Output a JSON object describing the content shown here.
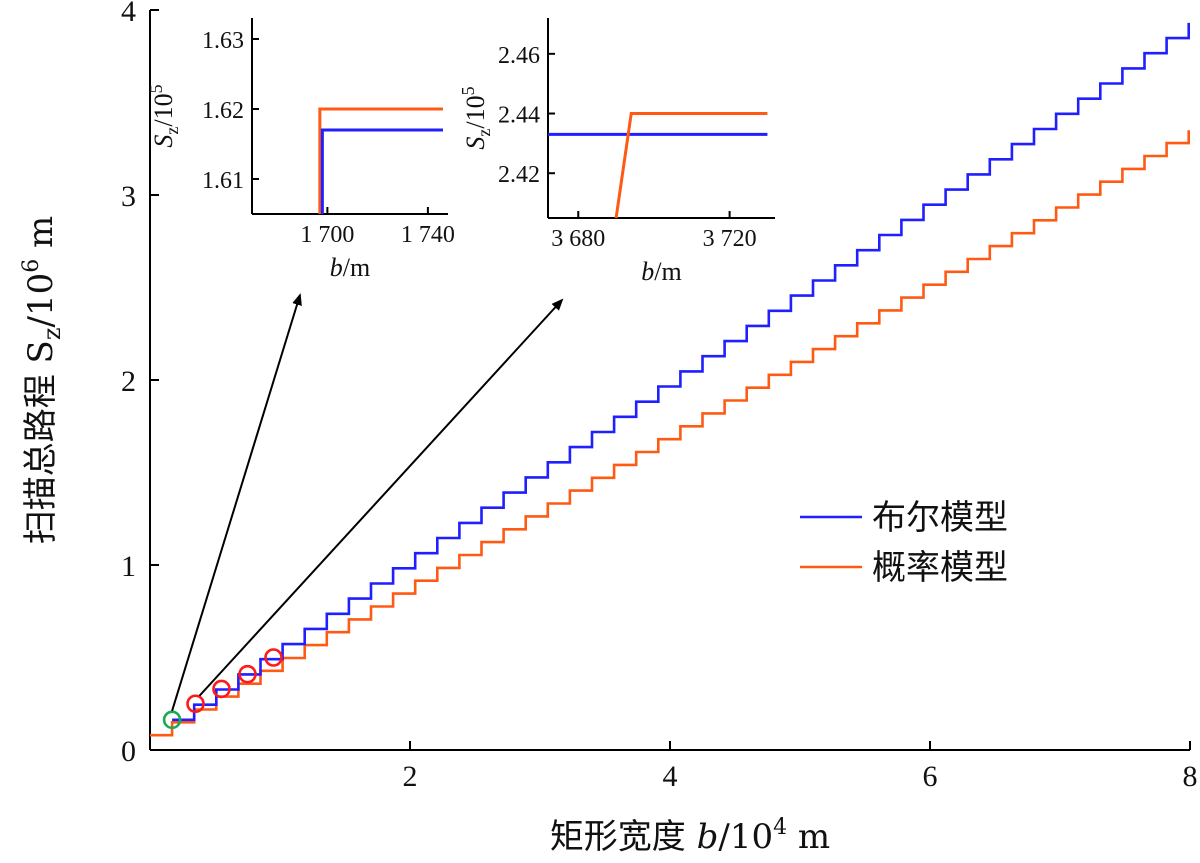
{
  "colors": {
    "blue": "#1f1fff",
    "orange": "#ff5a14",
    "red_marker": "#ff1a1a",
    "green_marker": "#1aaa55"
  },
  "chart_data": [
    {
      "type": "line",
      "name": "main",
      "xlabel": "矩形宽度 b/10⁴ m",
      "xlabel_parts": {
        "prefix": "矩形宽度 ",
        "var": "b",
        "mid": "/10",
        "sup": "4",
        "unit": " m"
      },
      "ylabel_parts": {
        "prefix": "扫描总路程 S",
        "sub": "z",
        "mid": "/10",
        "sup": "6",
        "unit": " m"
      },
      "xlim": [
        0,
        8
      ],
      "ylim": [
        0,
        4
      ],
      "x_ticks": [
        2,
        4,
        6,
        8
      ],
      "x_tick_labels": [
        "2",
        "4",
        "6",
        "8"
      ],
      "y_ticks": [
        0,
        1,
        2,
        3,
        4
      ],
      "y_tick_labels": [
        "0",
        "1",
        "2",
        "3",
        "4"
      ],
      "legend": {
        "placement": "center-right"
      },
      "series": [
        {
          "name": "布尔模型",
          "color": "#1f1fff",
          "x_start": 0.17,
          "x_end": 7.95,
          "y_start": 0.163,
          "y_end": 3.93,
          "step_width": 0.17
        },
        {
          "name": "概率模型",
          "color": "#ff5a14",
          "x_start": 0.0,
          "x_end": 7.95,
          "y_start": 0.08,
          "y_end": 3.35,
          "step_width": 0.17
        }
      ],
      "markers": [
        {
          "x": 0.17,
          "y": 0.163,
          "color": "#1aaa55"
        },
        {
          "x": 0.35,
          "y": 0.25,
          "color": "#ff1a1a"
        },
        {
          "x": 0.55,
          "y": 0.33,
          "color": "#ff1a1a"
        },
        {
          "x": 0.75,
          "y": 0.41,
          "color": "#ff1a1a"
        },
        {
          "x": 0.95,
          "y": 0.5,
          "color": "#ff1a1a"
        }
      ]
    },
    {
      "type": "line",
      "name": "inset-1",
      "title_parts": {
        "s": "S",
        "sub": "z",
        "mid": "/10",
        "sup": "5"
      },
      "xlabel_parts": {
        "var": "b",
        "unit": "/m"
      },
      "xlim": [
        1670,
        1748
      ],
      "ylim": [
        1.605,
        1.633
      ],
      "x_ticks": [
        1700,
        1740
      ],
      "x_tick_labels": [
        "1 700",
        "1 740"
      ],
      "y_ticks": [
        1.61,
        1.62,
        1.63
      ],
      "y_tick_labels": [
        "1.61",
        "1.62",
        "1.63"
      ],
      "series": [
        {
          "name": "布尔模型",
          "color": "#1f1fff",
          "x_jump": 1698,
          "y_before": 1.605,
          "y_after": 1.617,
          "x_end": 1746
        },
        {
          "name": "概率模型",
          "color": "#ff5a14",
          "x_jump": 1697,
          "y_before": 1.605,
          "y_after": 1.62,
          "x_end": 1746
        }
      ]
    },
    {
      "type": "line",
      "name": "inset-2",
      "title_parts": {
        "s": "S",
        "sub": "z",
        "mid": "/10",
        "sup": "5"
      },
      "xlabel_parts": {
        "var": "b",
        "unit": "/m"
      },
      "xlim": [
        3672,
        3732
      ],
      "ylim": [
        2.405,
        2.472
      ],
      "x_ticks": [
        3680,
        3720
      ],
      "x_tick_labels": [
        "3 680",
        "3 720"
      ],
      "y_ticks": [
        2.42,
        2.44,
        2.46
      ],
      "y_tick_labels": [
        "2.42",
        "2.44",
        "2.46"
      ],
      "series": [
        {
          "name": "布尔模型",
          "color": "#1f1fff",
          "x_start": 3672,
          "y": 2.433,
          "x_end": 3730
        },
        {
          "name": "概率模型",
          "color": "#ff5a14",
          "x_start": 3690,
          "y_start": 2.405,
          "x_jump": 3694,
          "y_after": 2.44,
          "x_end": 3730
        }
      ]
    }
  ]
}
